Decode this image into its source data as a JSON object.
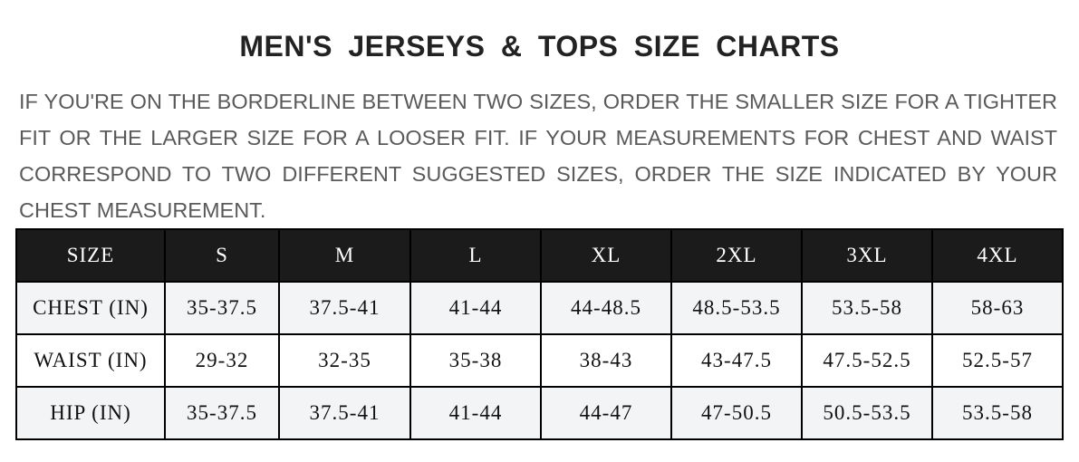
{
  "title": "MEN'S JERSEYS & TOPS SIZE CHARTS",
  "note": "IF YOU'RE ON THE BORDERLINE BETWEEN TWO SIZES, ORDER THE SMALLER SIZE FOR A TIGHTER FIT OR THE LARGER SIZE FOR A LOOSER FIT. IF YOUR MEASUREMENTS FOR CHEST AND WAIST CORRESPOND TO TWO DIFFERENT SUGGESTED SIZES, ORDER THE SIZE INDICATED BY YOUR CHEST MEASUREMENT.",
  "table": {
    "headers": [
      "SIZE",
      "S",
      "M",
      "L",
      "XL",
      "2XL",
      "3XL",
      "4XL"
    ],
    "rows": [
      [
        "CHEST (IN)",
        "35-37.5",
        "37.5-41",
        "41-44",
        "44-48.5",
        "48.5-53.5",
        "53.5-58",
        "58-63"
      ],
      [
        "WAIST (IN)",
        "29-32",
        "32-35",
        "35-38",
        "38-43",
        "43-47.5",
        "47.5-52.5",
        "52.5-57"
      ],
      [
        "HIP (IN)",
        "35-37.5",
        "37.5-41",
        "41-44",
        "44-47",
        "47-50.5",
        "50.5-53.5",
        "53.5-58"
      ]
    ]
  },
  "colors": {
    "header_bg": "#1b1b1b",
    "row_alt_bg": "#f3f4f6",
    "note_text": "#5a5a5a"
  }
}
